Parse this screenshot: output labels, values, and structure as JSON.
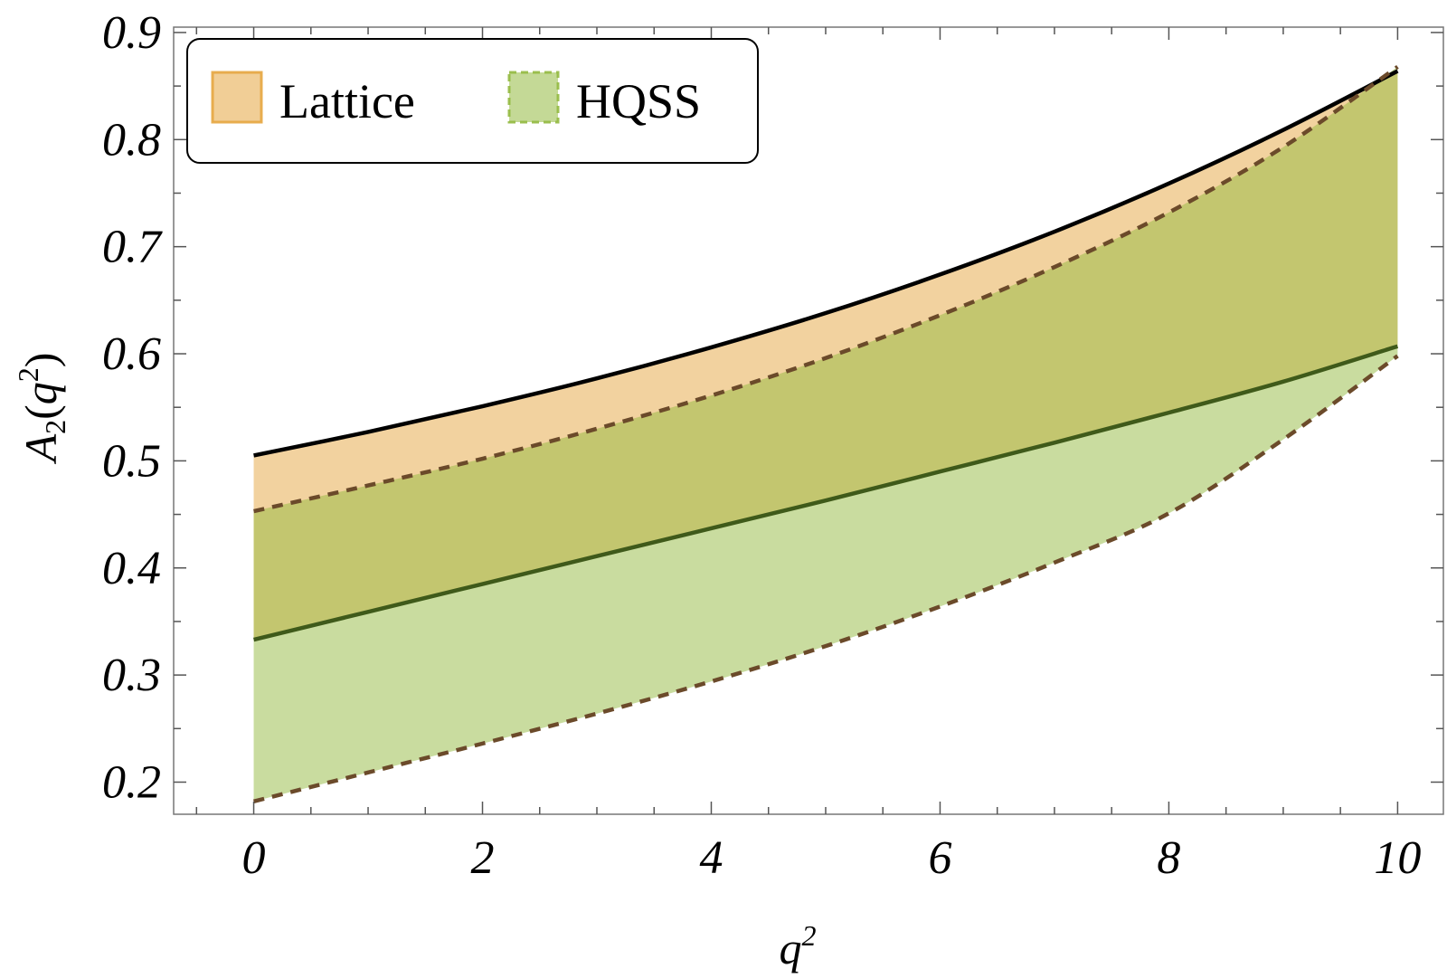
{
  "chart_data": {
    "type": "area",
    "xlabel": "q2",
    "ylabel": "A2(q2)",
    "xlim": [
      -0.7,
      10.4
    ],
    "ylim": [
      0.17,
      0.905
    ],
    "x_ticks": [
      0,
      2,
      4,
      6,
      8,
      10
    ],
    "x_tick_labels": [
      "0",
      "2",
      "4",
      "6",
      "8",
      "10"
    ],
    "y_ticks": [
      0.2,
      0.3,
      0.4,
      0.5,
      0.6,
      0.7,
      0.8,
      0.9
    ],
    "y_tick_labels": [
      "0.2",
      "0.3",
      "0.4",
      "0.5",
      "0.6",
      "0.7",
      "0.8",
      "0.9"
    ],
    "legend_position": "top-left",
    "grid": false,
    "x": [
      0,
      1,
      2,
      3,
      4,
      5,
      6,
      7,
      8,
      9,
      10
    ],
    "series": [
      {
        "name": "Lattice",
        "color": "#e5a640",
        "upper": [
          0.505,
          0.527,
          0.551,
          0.577,
          0.606,
          0.638,
          0.674,
          0.714,
          0.759,
          0.809,
          0.864
        ],
        "lower": [
          0.333,
          0.359,
          0.385,
          0.411,
          0.437,
          0.463,
          0.49,
          0.517,
          0.545,
          0.574,
          0.607
        ]
      },
      {
        "name": "HQSS",
        "color": "#93b940",
        "upper": [
          0.453,
          0.477,
          0.502,
          0.53,
          0.561,
          0.596,
          0.636,
          0.681,
          0.732,
          0.793,
          0.868
        ],
        "lower": [
          0.182,
          0.209,
          0.236,
          0.264,
          0.294,
          0.327,
          0.364,
          0.405,
          0.451,
          0.52,
          0.598
        ]
      }
    ]
  }
}
